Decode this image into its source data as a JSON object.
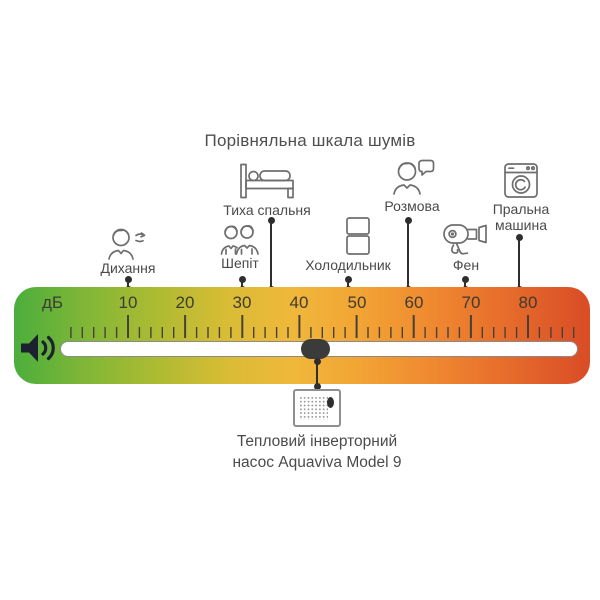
{
  "title": "Порівняльна шкала шумів",
  "scale": {
    "unit_label": "дБ",
    "tick_labels": [
      "10",
      "20",
      "30",
      "40",
      "50",
      "60",
      "70",
      "80"
    ],
    "min_db": 0,
    "max_db": 88,
    "minor_step": 2,
    "major_step": 10,
    "tick_color": "#45413a",
    "connector_color": "#2e2e2e",
    "handle_color": "#3b3b3b",
    "speaker_color": "#1c2130",
    "gradient_stops": [
      "#4bae3c 0%",
      "#7fb637 12%",
      "#aebb32 25%",
      "#d9bc35 37%",
      "#f0b83b 48%",
      "#f2a434 60%",
      "#ef8830 73%",
      "#e66b2b 86%",
      "#d94c26 100%"
    ]
  },
  "items": [
    {
      "label": "Дихання",
      "icon": "breathing-icon",
      "db": 10
    },
    {
      "label": "Шепіт",
      "icon": "whisper-icon",
      "db": 30
    },
    {
      "label": "Тиха спальня",
      "icon": "bed-icon",
      "db": 35
    },
    {
      "label": "Холодильник",
      "icon": "fridge-icon",
      "db": 50
    },
    {
      "label": "Розмова",
      "icon": "conversation-icon",
      "db": 60
    },
    {
      "label": "Фен",
      "icon": "hairdryer-icon",
      "db": 70
    },
    {
      "label": "Пральна машина",
      "icon": "washing-machine-icon",
      "db": 80
    }
  ],
  "pointer": {
    "label_line1": "Тепловий інверторний",
    "label_line2": "насос Aquaviva Model 9",
    "full_label": "Тепловий інверторний насос Aquaviva Model 9",
    "db": 43,
    "icon": "heat-pump-icon"
  },
  "chart_data": {
    "type": "scatter",
    "title": "Порівняльна шкала шумів",
    "xlabel": "дБ",
    "x_range": [
      0,
      88
    ],
    "x_ticks": [
      10,
      20,
      30,
      40,
      50,
      60,
      70,
      80
    ],
    "orientation": "horizontal",
    "legend": "none",
    "grid": "ruler ticks every 2 dB, major every 10 dB",
    "points": [
      {
        "label": "Дихання",
        "db": 10
      },
      {
        "label": "Шепіт",
        "db": 30
      },
      {
        "label": "Тиха спальня",
        "db": 35
      },
      {
        "label": "Тепловий інверторний насос Aquaviva Model 9",
        "db": 43
      },
      {
        "label": "Холодильник",
        "db": 50
      },
      {
        "label": "Розмова",
        "db": 60
      },
      {
        "label": "Фен",
        "db": 70
      },
      {
        "label": "Пральна машина",
        "db": 80
      }
    ]
  }
}
